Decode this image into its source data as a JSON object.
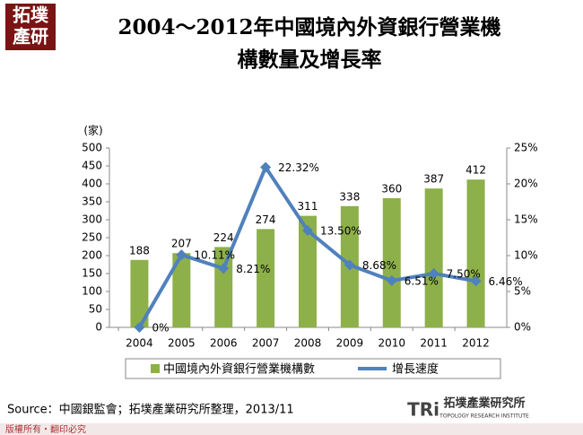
{
  "header": {
    "logo": [
      "拓墣",
      "產研"
    ],
    "title": [
      "2004～2012年中國境內外資銀行營業機",
      "構數量及增長率"
    ]
  },
  "chart_data": {
    "type": "combo",
    "y_label": "(家)",
    "categories": [
      "2004",
      "2005",
      "2006",
      "2007",
      "2008",
      "2009",
      "2010",
      "2011",
      "2012"
    ],
    "series": [
      {
        "name": "中國境內外資銀行營業機構數",
        "type": "bar",
        "color": "#8db04a",
        "values": [
          188,
          207,
          224,
          274,
          311,
          338,
          360,
          387,
          412
        ]
      },
      {
        "name": "增長速度",
        "type": "line",
        "axis": "y2",
        "color": "#4f81bd",
        "values": [
          0,
          10.11,
          8.21,
          22.32,
          13.5,
          8.68,
          6.51,
          7.5,
          6.46
        ],
        "value_labels": [
          "0%",
          "10.11%",
          "8.21%",
          "22.32%",
          "13.50%",
          "8.68%",
          "6.51%",
          "7.50%",
          "6.46%"
        ]
      }
    ],
    "ylim": [
      0,
      500
    ],
    "yticks": [
      0,
      50,
      100,
      150,
      200,
      250,
      300,
      350,
      400,
      450,
      500
    ],
    "y2lim": [
      0,
      25
    ],
    "y2ticks": [
      {
        "value": 0,
        "label": "0%"
      },
      {
        "value": 5,
        "label": "5%"
      },
      {
        "value": 10,
        "label": "10%"
      },
      {
        "value": 15,
        "label": "15%"
      },
      {
        "value": 20,
        "label": "20%"
      },
      {
        "value": 25,
        "label": "25%"
      }
    ],
    "legend": "bottom"
  },
  "footer": {
    "source": "Source：中國銀監會；拓墣產業研究所整理，2013/11",
    "copyright": "版權所有・翻印必究",
    "brand": "拓墣產業研究所",
    "brand_en": "TOPOLOGY RESEARCH INSTITUTE",
    "brand_mark": "TRi"
  }
}
